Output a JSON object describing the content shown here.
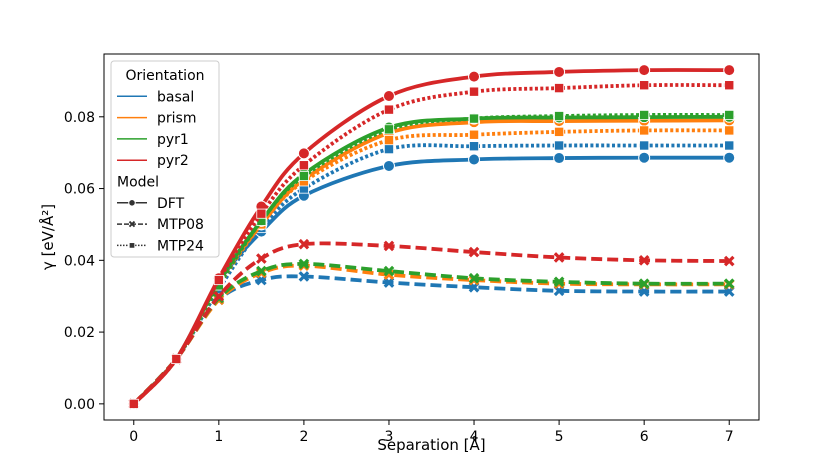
{
  "chart_data": {
    "type": "line",
    "title": "",
    "xlabel": "Separation [Å]",
    "ylabel": "γ [eV/Å²]",
    "xlim": [
      -0.35,
      7.35
    ],
    "ylim": [
      -0.0045,
      0.0975
    ],
    "x_ticks": [
      0,
      1,
      2,
      3,
      4,
      5,
      6,
      7
    ],
    "y_ticks": [
      0.0,
      0.02,
      0.04,
      0.06,
      0.08
    ],
    "y_tick_labels": [
      "0.00",
      "0.02",
      "0.04",
      "0.06",
      "0.08"
    ],
    "grid": false,
    "legend": {
      "placement": "top-left",
      "hue_title": "Orientation",
      "style_title": "Model",
      "orientations": [
        {
          "name": "basal",
          "color": "#1f77b4"
        },
        {
          "name": "prism",
          "color": "#ff7f0e"
        },
        {
          "name": "pyr1",
          "color": "#2ca02c"
        },
        {
          "name": "pyr2",
          "color": "#d62728"
        }
      ],
      "models": [
        {
          "name": "DFT",
          "dash": "solid",
          "marker": "circle"
        },
        {
          "name": "MTP08",
          "dash": "dashed",
          "marker": "x"
        },
        {
          "name": "MTP24",
          "dash": "dotted",
          "marker": "square"
        }
      ]
    },
    "x": [
      0,
      0.5,
      1.0,
      1.5,
      2.0,
      3.0,
      4.0,
      5.0,
      6.0,
      7.0
    ],
    "series": [
      {
        "name": "basal DFT",
        "orientation": "basal",
        "model": "DFT",
        "values": [
          0.0,
          0.0125,
          0.034,
          0.048,
          0.058,
          0.0663,
          0.0681,
          0.0685,
          0.0686,
          0.0686
        ]
      },
      {
        "name": "basal MTP08",
        "orientation": "basal",
        "model": "MTP08",
        "values": [
          0.0,
          0.0125,
          0.029,
          0.0345,
          0.0355,
          0.0338,
          0.0325,
          0.0315,
          0.0313,
          0.0313
        ]
      },
      {
        "name": "basal MTP24",
        "orientation": "basal",
        "model": "MTP24",
        "values": [
          0.0,
          0.0125,
          0.032,
          0.049,
          0.06,
          0.071,
          0.0718,
          0.072,
          0.072,
          0.072
        ]
      },
      {
        "name": "prism DFT",
        "orientation": "prism",
        "model": "DFT",
        "values": [
          0.0,
          0.0125,
          0.034,
          0.05,
          0.0625,
          0.0755,
          0.0785,
          0.0788,
          0.0789,
          0.079
        ]
      },
      {
        "name": "prism MTP08",
        "orientation": "prism",
        "model": "MTP08",
        "values": [
          0.0,
          0.0125,
          0.029,
          0.0365,
          0.0385,
          0.036,
          0.0345,
          0.0335,
          0.0333,
          0.0333
        ]
      },
      {
        "name": "prism MTP24",
        "orientation": "prism",
        "model": "MTP24",
        "values": [
          0.0,
          0.0125,
          0.033,
          0.05,
          0.062,
          0.0735,
          0.075,
          0.0758,
          0.0762,
          0.0762
        ]
      },
      {
        "name": "pyr1 DFT",
        "orientation": "pyr1",
        "model": "DFT",
        "values": [
          0.0,
          0.0125,
          0.034,
          0.051,
          0.064,
          0.077,
          0.0795,
          0.0798,
          0.0799,
          0.08
        ]
      },
      {
        "name": "pyr1 MTP08",
        "orientation": "pyr1",
        "model": "MTP08",
        "values": [
          0.0,
          0.0125,
          0.0295,
          0.037,
          0.039,
          0.037,
          0.035,
          0.034,
          0.0335,
          0.0335
        ]
      },
      {
        "name": "pyr1 MTP24",
        "orientation": "pyr1",
        "model": "MTP24",
        "values": [
          0.0,
          0.0125,
          0.033,
          0.051,
          0.0635,
          0.0765,
          0.0795,
          0.0802,
          0.0805,
          0.0805
        ]
      },
      {
        "name": "pyr2 DFT",
        "orientation": "pyr2",
        "model": "DFT",
        "values": [
          0.0,
          0.0125,
          0.035,
          0.055,
          0.0698,
          0.0858,
          0.0912,
          0.0925,
          0.093,
          0.093
        ]
      },
      {
        "name": "pyr2 MTP08",
        "orientation": "pyr2",
        "model": "MTP08",
        "values": [
          0.0,
          0.0125,
          0.03,
          0.0405,
          0.0445,
          0.044,
          0.0423,
          0.0408,
          0.04,
          0.0398
        ]
      },
      {
        "name": "pyr2 MTP24",
        "orientation": "pyr2",
        "model": "MTP24",
        "values": [
          0.0,
          0.0125,
          0.0345,
          0.053,
          0.0665,
          0.082,
          0.087,
          0.088,
          0.0888,
          0.0888
        ]
      }
    ]
  }
}
